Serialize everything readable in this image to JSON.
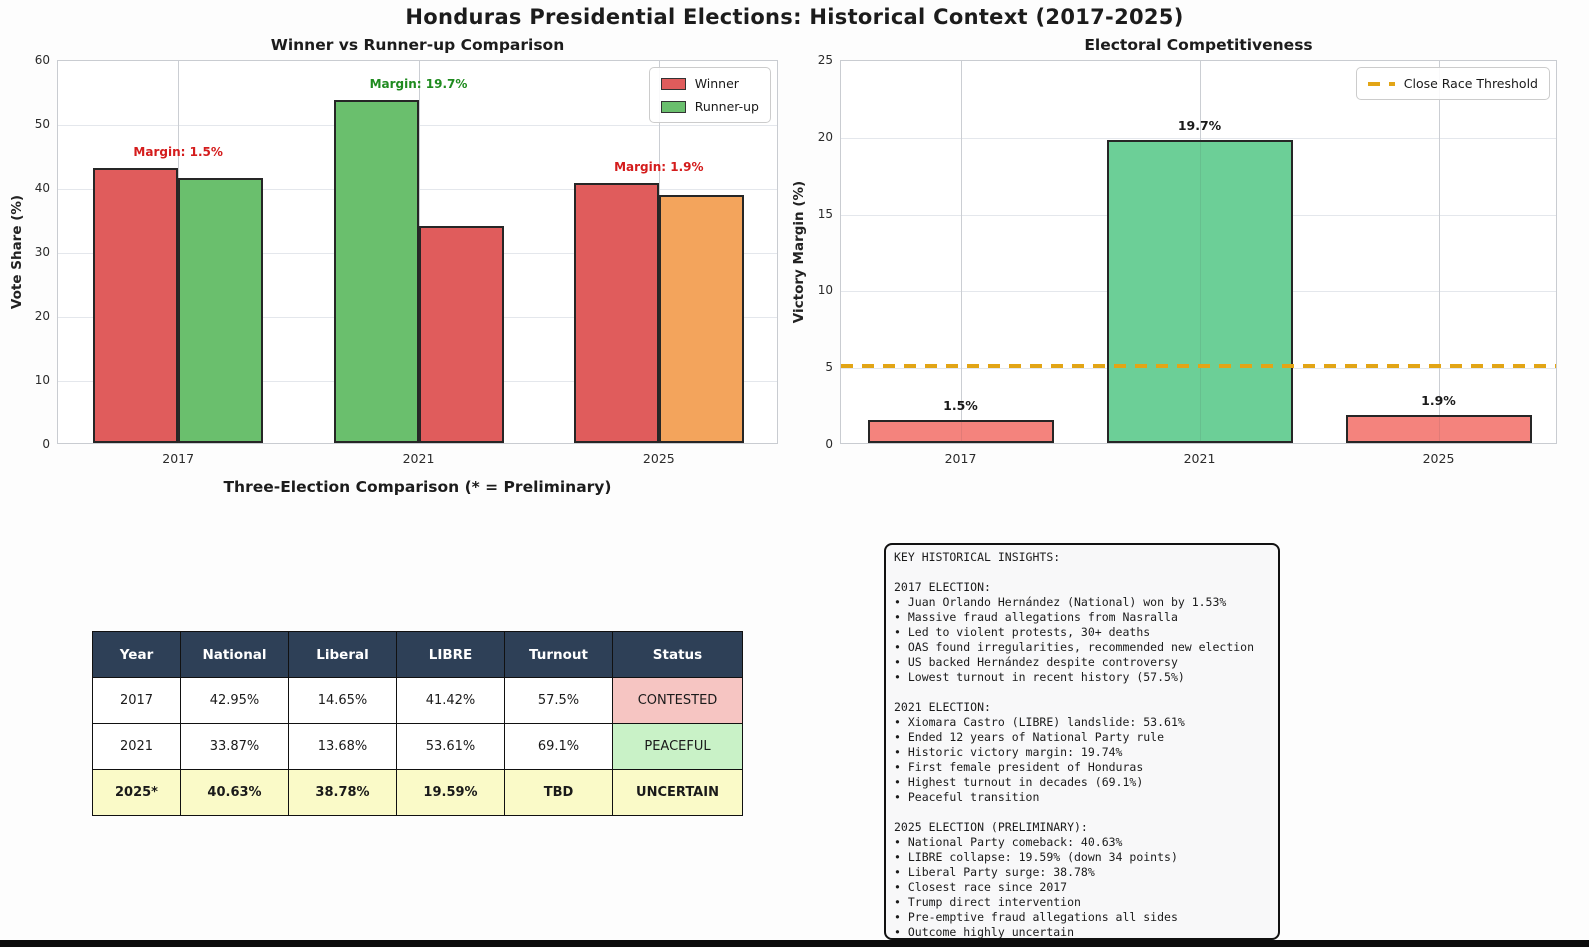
{
  "title": "Honduras Presidential Elections: Historical Context (2017-2025)",
  "colors": {
    "winner_red": "#e05c5c",
    "runnerup_green": "#6abf6d",
    "liberal_orange": "#f3a45c",
    "margin_green_bar": "#6ccf97",
    "margin_salmon_bar": "#f4837d",
    "threshold_orange": "#e2a516",
    "margin_label_red": "#d41c1c",
    "margin_label_green": "#1f8b1f",
    "bottom_bar": "#0c0c0c"
  },
  "chart_data": [
    {
      "id": "winner-runnerup",
      "type": "bar",
      "title": "Winner vs Runner-up Comparison",
      "xlabel": "Three-Election Comparison (* = Preliminary)",
      "ylabel": "Vote Share (%)",
      "ylim": [
        0,
        60
      ],
      "yticks": [
        0,
        10,
        20,
        30,
        40,
        50,
        60
      ],
      "categories": [
        "2017",
        "2021",
        "2025"
      ],
      "grid": true,
      "legend_position": "upper right",
      "series": [
        {
          "name": "Winner",
          "values": [
            42.95,
            53.61,
            40.63
          ],
          "bar_colors": [
            "#e05c5c",
            "#6abf6d",
            "#e05c5c"
          ]
        },
        {
          "name": "Runner-up",
          "values": [
            41.42,
            33.87,
            38.78
          ],
          "bar_colors": [
            "#6abf6d",
            "#e05c5c",
            "#f3a45c"
          ]
        }
      ],
      "annotations": [
        {
          "text": "Margin: 1.5%",
          "color": "#d41c1c"
        },
        {
          "text": "Margin: 19.7%",
          "color": "#1f8b1f"
        },
        {
          "text": "Margin: 1.9%",
          "color": "#d41c1c"
        }
      ],
      "legend": [
        {
          "label": "Winner",
          "color": "#e05c5c",
          "swatch": "patch"
        },
        {
          "label": "Runner-up",
          "color": "#6abf6d",
          "swatch": "patch"
        }
      ]
    },
    {
      "id": "competitiveness",
      "type": "bar",
      "title": "Electoral Competitiveness",
      "xlabel": "",
      "ylabel": "Victory Margin (%)",
      "ylim": [
        0,
        25
      ],
      "yticks": [
        0,
        5,
        10,
        15,
        20,
        25
      ],
      "categories": [
        "2017",
        "2021",
        "2025"
      ],
      "grid": true,
      "legend_position": "upper right",
      "series": [
        {
          "name": "Victory Margin",
          "values": [
            1.53,
            19.74,
            1.85
          ],
          "bar_colors": [
            "#f4837d",
            "#6ccf97",
            "#f4837d"
          ]
        }
      ],
      "bar_labels": [
        "1.5%",
        "19.7%",
        "1.9%"
      ],
      "threshold": {
        "y": 5,
        "label": "Close Race Threshold",
        "color": "#e2a516",
        "style": "dashed"
      },
      "legend": [
        {
          "label": "Close Race Threshold",
          "color": "#e2a516",
          "swatch": "dash"
        }
      ]
    }
  ],
  "table": {
    "header_bg": "#2e4057",
    "header_color": "#ffffff",
    "headers": [
      "Year",
      "National",
      "Liberal",
      "LIBRE",
      "Turnout",
      "Status"
    ],
    "rows": [
      {
        "cells": [
          "2017",
          "42.95%",
          "14.65%",
          "41.42%",
          "57.5%",
          "CONTESTED"
        ],
        "row_bg": "#ffffff",
        "status_bg": "#f6c5c2",
        "bold": false
      },
      {
        "cells": [
          "2021",
          "33.87%",
          "13.68%",
          "53.61%",
          "69.1%",
          "PEACEFUL"
        ],
        "row_bg": "#ffffff",
        "status_bg": "#c9f2c7",
        "bold": false
      },
      {
        "cells": [
          "2025*",
          "40.63%",
          "38.78%",
          "19.59%",
          "TBD",
          "UNCERTAIN"
        ],
        "row_bg": "#fafac8",
        "status_bg": "#fafac8",
        "bold": true
      }
    ]
  },
  "insights": {
    "lines": [
      "KEY HISTORICAL INSIGHTS:",
      "",
      "2017 ELECTION:",
      "• Juan Orlando Hernández (National) won by 1.53%",
      "• Massive fraud allegations from Nasralla",
      "• Led to violent protests, 30+ deaths",
      "• OAS found irregularities, recommended new election",
      "• US backed Hernández despite controversy",
      "• Lowest turnout in recent history (57.5%)",
      "",
      "2021 ELECTION:",
      "• Xiomara Castro (LIBRE) landslide: 53.61%",
      "• Ended 12 years of National Party rule",
      "• Historic victory margin: 19.74%",
      "• First female president of Honduras",
      "• Highest turnout in decades (69.1%)",
      "• Peaceful transition",
      "",
      "2025 ELECTION (PRELIMINARY):",
      "• National Party comeback: 40.63%",
      "• LIBRE collapse: 19.59% (down 34 points)",
      "• Liberal Party surge: 38.78%",
      "• Closest race since 2017",
      "• Trump direct intervention",
      "• Pre-emptive fraud allegations all sides",
      "• Outcome highly uncertain"
    ]
  }
}
